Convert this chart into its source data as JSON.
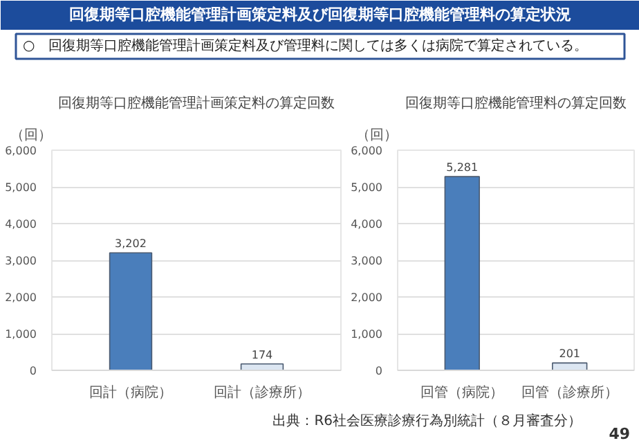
{
  "chart_data": [
    {
      "type": "other",
      "title": "回復期等口腔機能管理計画策定料及び回復期等口腔機能管理料の算定状況",
      "subtitle": "○　回復期等口腔機能管理計画策定料及び管理料に関しては多くは病院で算定されている。",
      "annotations": [
        "出典：R6社会医療診療行為別統計（８月審査分）",
        "49"
      ]
    },
    {
      "type": "bar",
      "title": "回復期等口腔機能管理計画策定料の算定回数",
      "ylabel": "（回）",
      "categories": [
        "回計（病院）",
        "回計（診療所）"
      ],
      "values": [
        3202,
        174
      ],
      "value_labels": [
        "3,202",
        "174"
      ],
      "colors": [
        "#4a7ebb",
        "#dce6f2"
      ],
      "grid": "y",
      "ylim": [
        0,
        6000
      ],
      "yticks": [
        {
          "value": 0,
          "label": "0"
        },
        {
          "value": 1000,
          "label": "1,000"
        },
        {
          "value": 2000,
          "label": "2,000"
        },
        {
          "value": 3000,
          "label": "3,000"
        },
        {
          "value": 4000,
          "label": "4,000"
        },
        {
          "value": 5000,
          "label": "5,000"
        },
        {
          "value": 6000,
          "label": "6,000"
        }
      ]
    },
    {
      "type": "bar",
      "title": "回復期等口腔機能管理料の算定回数",
      "ylabel": "（回）",
      "categories": [
        "回管（病院）",
        "回管（診療所）"
      ],
      "values": [
        5281,
        201
      ],
      "value_labels": [
        "5,281",
        "201"
      ],
      "colors": [
        "#4a7ebb",
        "#dce6f2"
      ],
      "grid": "y",
      "ylim": [
        0,
        6000
      ],
      "yticks": [
        {
          "value": 0,
          "label": "0"
        },
        {
          "value": 1000,
          "label": "1,000"
        },
        {
          "value": 2000,
          "label": "2,000"
        },
        {
          "value": 3000,
          "label": "3,000"
        },
        {
          "value": 4000,
          "label": "4,000"
        },
        {
          "value": 5000,
          "label": "5,000"
        },
        {
          "value": 6000,
          "label": "6,000"
        }
      ]
    }
  ]
}
